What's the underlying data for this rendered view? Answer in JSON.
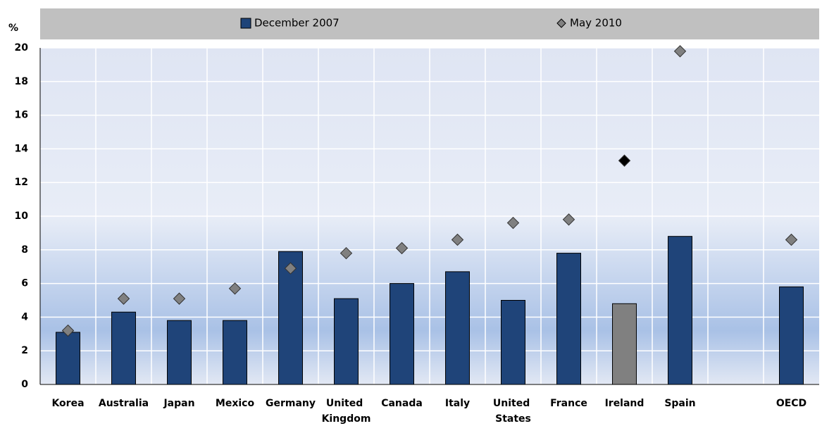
{
  "chart_data": {
    "type": "bar",
    "y_label": "%",
    "categories": [
      "Korea",
      "Australia",
      "Japan",
      "Mexico",
      "Germany",
      "United Kingdom",
      "Canada",
      "Italy",
      "United States",
      "France",
      "Ireland",
      "Spain",
      null,
      "OECD"
    ],
    "series": [
      {
        "name": "December 2007",
        "type": "bar",
        "color": "#1f4479",
        "colors": [
          "#1f4479",
          "#1f4479",
          "#1f4479",
          "#1f4479",
          "#1f4479",
          "#1f4479",
          "#1f4479",
          "#1f4479",
          "#1f4479",
          "#1f4479",
          "#808080",
          "#1f4479",
          null,
          "#1f4479"
        ],
        "values": [
          3.1,
          4.3,
          3.8,
          3.8,
          7.9,
          5.1,
          6.0,
          6.7,
          5.0,
          7.8,
          4.8,
          8.8,
          null,
          5.8
        ]
      },
      {
        "name": "May 2010",
        "type": "scatter",
        "color": "#808080",
        "colors": [
          "#808080",
          "#808080",
          "#808080",
          "#808080",
          "#808080",
          "#808080",
          "#808080",
          "#808080",
          "#808080",
          "#808080",
          "#000000",
          "#808080",
          null,
          "#808080"
        ],
        "values": [
          3.2,
          5.1,
          5.1,
          5.7,
          6.9,
          7.8,
          8.1,
          8.6,
          9.6,
          9.8,
          13.3,
          19.8,
          null,
          8.6
        ]
      }
    ],
    "ylim": [
      0,
      20
    ],
    "yticks": [
      0,
      2,
      4,
      6,
      8,
      10,
      12,
      14,
      16,
      18,
      20
    ],
    "grid": true,
    "legend": "top"
  }
}
